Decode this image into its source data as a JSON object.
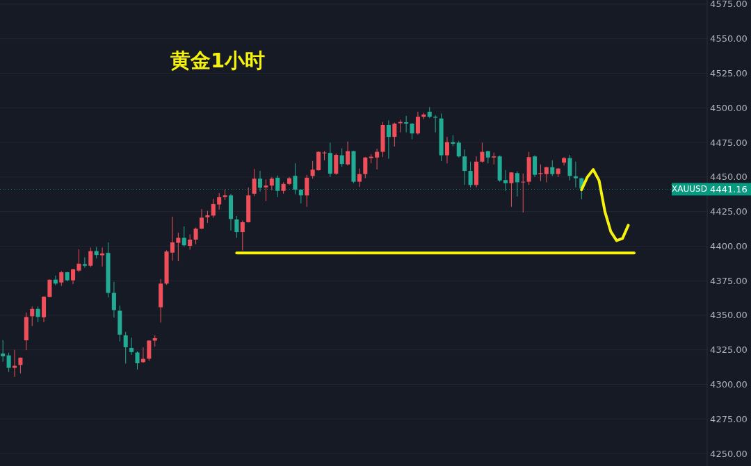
{
  "chart_data": {
    "type": "candlestick",
    "title": "黄金1小时",
    "categories": [
      null,
      null,
      null,
      null,
      null,
      null,
      null,
      null,
      null,
      null,
      null,
      null,
      null,
      null,
      null,
      null,
      null,
      null,
      null,
      null,
      null,
      null,
      null,
      null,
      null,
      null,
      null,
      null,
      null,
      null,
      null,
      null,
      null,
      null,
      null,
      null,
      null,
      null,
      null,
      null,
      null,
      null,
      null,
      null,
      null,
      null,
      null,
      null,
      null,
      null,
      null,
      null,
      null,
      null,
      null,
      null,
      null,
      null,
      null,
      null,
      null,
      null,
      null,
      null,
      null,
      null,
      null,
      null,
      null,
      null,
      null,
      null,
      null,
      null,
      null,
      null,
      null,
      null,
      null,
      null,
      null,
      null,
      null,
      null,
      null,
      null,
      null,
      null,
      null,
      null,
      null,
      null,
      null,
      null,
      null,
      null,
      null,
      null,
      null,
      null,
      null,
      null,
      null,
      null,
      null,
      null,
      null,
      null,
      null,
      null,
      null,
      null,
      null,
      null,
      null,
      null,
      null,
      null,
      null,
      null,
      null
    ],
    "ohlc": [
      [
        4322.3,
        4332,
        4316.5,
        4320.3
      ],
      [
        4321,
        4323,
        4309,
        4312
      ],
      [
        4312,
        4325,
        4305.4,
        4313.5
      ],
      [
        4314,
        4319.5,
        4308,
        4319.3
      ],
      [
        4331.9,
        4352,
        4324.8,
        4348.8
      ],
      [
        4349.3,
        4356.3,
        4342.2,
        4354.6
      ],
      [
        4354.6,
        4356.3,
        4345,
        4348.8
      ],
      [
        4348.5,
        4363.7,
        4345,
        4363.4
      ],
      [
        4363.2,
        4375.8,
        4363,
        4375.7
      ],
      [
        4375.8,
        4378.7,
        4371.7,
        4372.9
      ],
      [
        4373.7,
        4382,
        4371.2,
        4381.1
      ],
      [
        4381.1,
        4381.5,
        4374.5,
        4375.3
      ],
      [
        4375.3,
        4383.6,
        4372.5,
        4383.3
      ],
      [
        4382.3,
        4397.7,
        4381.1,
        4387.3
      ],
      [
        4387,
        4391.9,
        4384.5,
        4385.8
      ],
      [
        4385.8,
        4399,
        4384.8,
        4396.4
      ],
      [
        4396.4,
        4399.4,
        4391.1,
        4393.6
      ],
      [
        4393.4,
        4399,
        4385.3,
        4394.7
      ],
      [
        4395.1,
        4402.7,
        4362.9,
        4366.2
      ],
      [
        4366.2,
        4374.2,
        4348.3,
        4353.8
      ],
      [
        4353.3,
        4357.1,
        4331.1,
        4336
      ],
      [
        4335.5,
        4338,
        4315.1,
        4326.9
      ],
      [
        4326.4,
        4333.9,
        4321.4,
        4323.4
      ],
      [
        4323.1,
        4323.9,
        4310.7,
        4315.3
      ],
      [
        4316.1,
        4326.8,
        4315.6,
        4318.5
      ],
      [
        4318.6,
        4331.9,
        4317.1,
        4331.7
      ],
      [
        4331.7,
        4335.5,
        4327.3,
        4333.4
      ],
      [
        4355.8,
        4376.2,
        4344.7,
        4372.9
      ],
      [
        4372.9,
        4397,
        4372,
        4396.1
      ],
      [
        4395.3,
        4421.3,
        4389.4,
        4402.7
      ],
      [
        4402.4,
        4409.7,
        4389.1,
        4406
      ],
      [
        4406,
        4414.3,
        4399.7,
        4400.6
      ],
      [
        4400.2,
        4408.5,
        4397.4,
        4404.7
      ],
      [
        4404.7,
        4413.5,
        4401.4,
        4412.6
      ],
      [
        4412.6,
        4426.8,
        4412.3,
        4420.6
      ],
      [
        4420.9,
        4425.6,
        4416.8,
        4422.3
      ],
      [
        4422.1,
        4434.2,
        4420.6,
        4430.4
      ],
      [
        4430.1,
        4438.4,
        4426.4,
        4435.4
      ],
      [
        4435.5,
        4440.8,
        4433.4,
        4436.7
      ],
      [
        4436.7,
        4437.9,
        4411.3,
        4419.6
      ],
      [
        4419.3,
        4421.8,
        4406,
        4410.2
      ],
      [
        4410.2,
        4418.5,
        4396.9,
        4417.3
      ],
      [
        4417.3,
        4442.5,
        4417,
        4436.7
      ],
      [
        4437.9,
        4455.8,
        4436.2,
        4448.8
      ],
      [
        4448.8,
        4454.4,
        4439.5,
        4442.2
      ],
      [
        4442.5,
        4448.3,
        4432.6,
        4443.8
      ],
      [
        4443.8,
        4450,
        4440.5,
        4448.8
      ],
      [
        4449.5,
        4451.1,
        4435.5,
        4440
      ],
      [
        4440,
        4446.2,
        4437.9,
        4445
      ],
      [
        4445,
        4450,
        4444.2,
        4449.1
      ],
      [
        4450.8,
        4459.9,
        4437.5,
        4440.8
      ],
      [
        4440.8,
        4441,
        4430.9,
        4436.7
      ],
      [
        4436.7,
        4451.5,
        4428.4,
        4449.5
      ],
      [
        4450.8,
        4461.6,
        4448.8,
        4455.3
      ],
      [
        4454.9,
        4468.5,
        4454.6,
        4468.2
      ],
      [
        4467.1,
        4468.7,
        4462.1,
        4467.7
      ],
      [
        4467.4,
        4474.8,
        4450,
        4452.4
      ],
      [
        4452.4,
        4467,
        4451.6,
        4466
      ],
      [
        4465.7,
        4470.7,
        4457.4,
        4459.4
      ],
      [
        4459.1,
        4475.7,
        4458.3,
        4468.7
      ],
      [
        4468.7,
        4469,
        4445.5,
        4446.6
      ],
      [
        4446.6,
        4456.1,
        4442.8,
        4452.1
      ],
      [
        4452.1,
        4464.5,
        4449.1,
        4464.1
      ],
      [
        4463.7,
        4466.5,
        4459.9,
        4464.7
      ],
      [
        4464.1,
        4470.4,
        4455.4,
        4468.2
      ],
      [
        4468.2,
        4489.8,
        4464.4,
        4487.6
      ],
      [
        4487.6,
        4490.9,
        4463.2,
        4479
      ],
      [
        4479,
        4489.3,
        4472,
        4488.6
      ],
      [
        4488.9,
        4491.4,
        4482.3,
        4489.8
      ],
      [
        4489.6,
        4494.2,
        4482.3,
        4488.6
      ],
      [
        4488.6,
        4489,
        4477.3,
        4481.5
      ],
      [
        4481.5,
        4497.2,
        4480.6,
        4493.6
      ],
      [
        4493.6,
        4496.4,
        4491.9,
        4495.2
      ],
      [
        4497.2,
        4500.5,
        4492.6,
        4493.6
      ],
      [
        4493.6,
        4494.7,
        4482.3,
        4492.9
      ],
      [
        4492.3,
        4495.9,
        4461.5,
        4465.7
      ],
      [
        4465.7,
        4479,
        4459.9,
        4475.2
      ],
      [
        4475.2,
        4480.3,
        4472.3,
        4474
      ],
      [
        4474.8,
        4476,
        4464.1,
        4464.9
      ],
      [
        4464.9,
        4469.9,
        4444.2,
        4454.4
      ],
      [
        4454.4,
        4461.1,
        4442.5,
        4444.2
      ],
      [
        4444.2,
        4464.9,
        4442.5,
        4461.1
      ],
      [
        4461.1,
        4474.8,
        4460.4,
        4468.2
      ],
      [
        4468.7,
        4469,
        4459.9,
        4464.1
      ],
      [
        4464.1,
        4467.7,
        4459.1,
        4464.9
      ],
      [
        4464.9,
        4465.7,
        4446.6,
        4447.5
      ],
      [
        4447.8,
        4455,
        4440,
        4445.5
      ],
      [
        4445.5,
        4453.5,
        4428.4,
        4453.3
      ],
      [
        4452.8,
        4454.1,
        4435.9,
        4446.2
      ],
      [
        4446.2,
        4452.5,
        4424.3,
        4446.6
      ],
      [
        4446.6,
        4468.2,
        4444.2,
        4464.4
      ],
      [
        4464.9,
        4465.7,
        4450,
        4451.6
      ],
      [
        4452.1,
        4459.1,
        4447.1,
        4452.8
      ],
      [
        4452.1,
        4457.5,
        4446.2,
        4457.1
      ],
      [
        4457.1,
        4462.1,
        4450.8,
        4452.1
      ],
      [
        4452.1,
        4456.5,
        4450,
        4456.1
      ],
      [
        4460.4,
        4464.4,
        4458.3,
        4463.7
      ],
      [
        4463.7,
        4466,
        4447.5,
        4450.8
      ],
      [
        4450.5,
        4461.1,
        4442.5,
        4449.1
      ],
      [
        4449.1,
        4449.5,
        4433.9,
        4441.7
      ],
      null,
      null,
      null,
      null,
      null,
      null,
      null,
      null,
      null,
      null,
      null,
      null,
      null,
      null,
      null,
      null,
      null,
      null,
      null,
      null,
      null
    ],
    "colors": [
      "#22ab94",
      "#22ab94",
      "#ef4f5a",
      "#ef4f5a",
      "#ef4f5a",
      "#ef4f5a",
      "#22ab94",
      "#ef4f5a",
      "#ef4f5a",
      "#22ab94",
      "#ef4f5a",
      "#22ab94",
      "#ef4f5a",
      "#ef4f5a",
      "#22ab94",
      "#ef4f5a",
      "#22ab94",
      "#ef4f5a",
      "#22ab94",
      "#22ab94",
      "#22ab94",
      "#22ab94",
      "#22ab94",
      "#22ab94",
      "#ef4f5a",
      "#ef4f5a",
      "#ef4f5a",
      "#ef4f5a",
      "#ef4f5a",
      "#ef4f5a",
      "#ef4f5a",
      "#22ab94",
      "#ef4f5a",
      "#ef4f5a",
      "#ef4f5a",
      "#ef4f5a",
      "#ef4f5a",
      "#ef4f5a",
      "#ef4f5a",
      "#22ab94",
      "#22ab94",
      "#ef4f5a",
      "#ef4f5a",
      "#ef4f5a",
      "#22ab94",
      "#ef4f5a",
      "#ef4f5a",
      "#22ab94",
      "#ef4f5a",
      "#ef4f5a",
      "#22ab94",
      "#22ab94",
      "#ef4f5a",
      "#ef4f5a",
      "#ef4f5a",
      "#ef4f5a",
      "#22ab94",
      "#ef4f5a",
      "#22ab94",
      "#ef4f5a",
      "#22ab94",
      "#ef4f5a",
      "#ef4f5a",
      "#ef4f5a",
      "#ef4f5a",
      "#ef4f5a",
      "#22ab94",
      "#ef4f5a",
      "#ef4f5a",
      "#22ab94",
      "#22ab94",
      "#ef4f5a",
      "#ef4f5a",
      "#22ab94",
      "#22ab94",
      "#22ab94",
      "#ef4f5a",
      "#22ab94",
      "#22ab94",
      "#22ab94",
      "#22ab94",
      "#ef4f5a",
      "#ef4f5a",
      "#22ab94",
      "#ef4f5a",
      "#22ab94",
      "#22ab94",
      "#ef4f5a",
      "#22ab94",
      "#ef4f5a",
      "#ef4f5a",
      "#22ab94",
      "#ef4f5a",
      "#ef4f5a",
      "#22ab94",
      "#ef4f5a",
      "#ef4f5a",
      "#22ab94",
      "#22ab94",
      "#22ab94",
      null,
      null,
      null,
      null,
      null,
      null,
      null,
      null,
      null,
      null,
      null,
      null,
      null,
      null,
      null,
      null,
      null,
      null,
      null,
      null,
      null
    ],
    "series": [
      {
        "type": "line",
        "color": "#f5f20e",
        "values": [
          null,
          null,
          null,
          null,
          null,
          null,
          null,
          null,
          null,
          null,
          null,
          null,
          null,
          null,
          null,
          null,
          null,
          null,
          null,
          null,
          null,
          null,
          null,
          null,
          null,
          null,
          null,
          null,
          null,
          null,
          null,
          null,
          null,
          null,
          null,
          null,
          null,
          null,
          null,
          null,
          4395,
          4395,
          4395,
          4395,
          4395,
          4395,
          4395,
          4395,
          4395,
          4395,
          4395,
          4395,
          4395,
          4395,
          4395,
          4395,
          4395,
          4395,
          4395,
          4395,
          4395,
          4395,
          4395,
          4395,
          4395,
          4395,
          4395,
          4395,
          4395,
          4395,
          4395,
          4395,
          4395,
          4395,
          4395,
          4395,
          4395,
          4395,
          4395,
          4395,
          4395,
          4395,
          4395,
          4395,
          4395,
          4395,
          4395,
          4395,
          4395,
          4395,
          4395,
          4395,
          4395,
          4395,
          4395,
          4395,
          4395,
          4395,
          4395,
          4395,
          4395,
          4395,
          4395,
          4395,
          4395,
          4395,
          4395,
          4395,
          4395,
          null,
          null,
          null,
          null,
          null,
          null,
          null,
          null,
          null,
          null,
          null,
          null
        ]
      },
      {
        "type": "line",
        "color": "#f5f20e",
        "values": [
          null,
          null,
          null,
          null,
          null,
          null,
          null,
          null,
          null,
          null,
          null,
          null,
          null,
          null,
          null,
          null,
          null,
          null,
          null,
          null,
          null,
          null,
          null,
          null,
          null,
          null,
          null,
          null,
          null,
          null,
          null,
          null,
          null,
          null,
          null,
          null,
          null,
          null,
          null,
          null,
          null,
          null,
          null,
          null,
          null,
          null,
          null,
          null,
          null,
          null,
          null,
          null,
          null,
          null,
          null,
          null,
          null,
          null,
          null,
          null,
          null,
          null,
          null,
          null,
          null,
          null,
          null,
          null,
          null,
          null,
          null,
          null,
          null,
          null,
          null,
          null,
          null,
          null,
          null,
          null,
          null,
          null,
          null,
          null,
          null,
          null,
          null,
          null,
          null,
          null,
          null,
          null,
          null,
          null,
          null,
          null,
          null,
          null,
          null,
          4440.8,
          4450,
          4455.4,
          4447.5,
          4425,
          4410.6,
          4404,
          4405.5,
          4415.1,
          null,
          null,
          null,
          null,
          null,
          null,
          null,
          null,
          null,
          null,
          null,
          null,
          null
        ]
      }
    ],
    "annotations": [
      "4441.16"
    ],
    "ref_lines": [
      {
        "axis": "y",
        "value": 4441.16,
        "label": "XAUUSD",
        "color": "#089981",
        "line_style": "dotted"
      }
    ],
    "ylim": [
      4241,
      4578
    ],
    "yticks": [
      {
        "value": 4250,
        "label": "4250.00"
      },
      {
        "value": 4275,
        "label": "4275.00"
      },
      {
        "value": 4300,
        "label": "4300.00"
      },
      {
        "value": 4325,
        "label": "4325.00"
      },
      {
        "value": 4350,
        "label": "4350.00"
      },
      {
        "value": 4375,
        "label": "4375.00"
      },
      {
        "value": 4400,
        "label": "4400.00"
      },
      {
        "value": 4425,
        "label": "4425.00"
      },
      {
        "value": 4450,
        "label": "4450.00"
      },
      {
        "value": 4475,
        "label": "4475.00"
      },
      {
        "value": 4500,
        "label": "4500.00"
      },
      {
        "value": 4525,
        "label": "4525.00"
      },
      {
        "value": 4550,
        "label": "4550.00"
      },
      {
        "value": 4575,
        "label": "4575.00"
      }
    ],
    "grid": "y",
    "tick_labels": "y"
  }
}
